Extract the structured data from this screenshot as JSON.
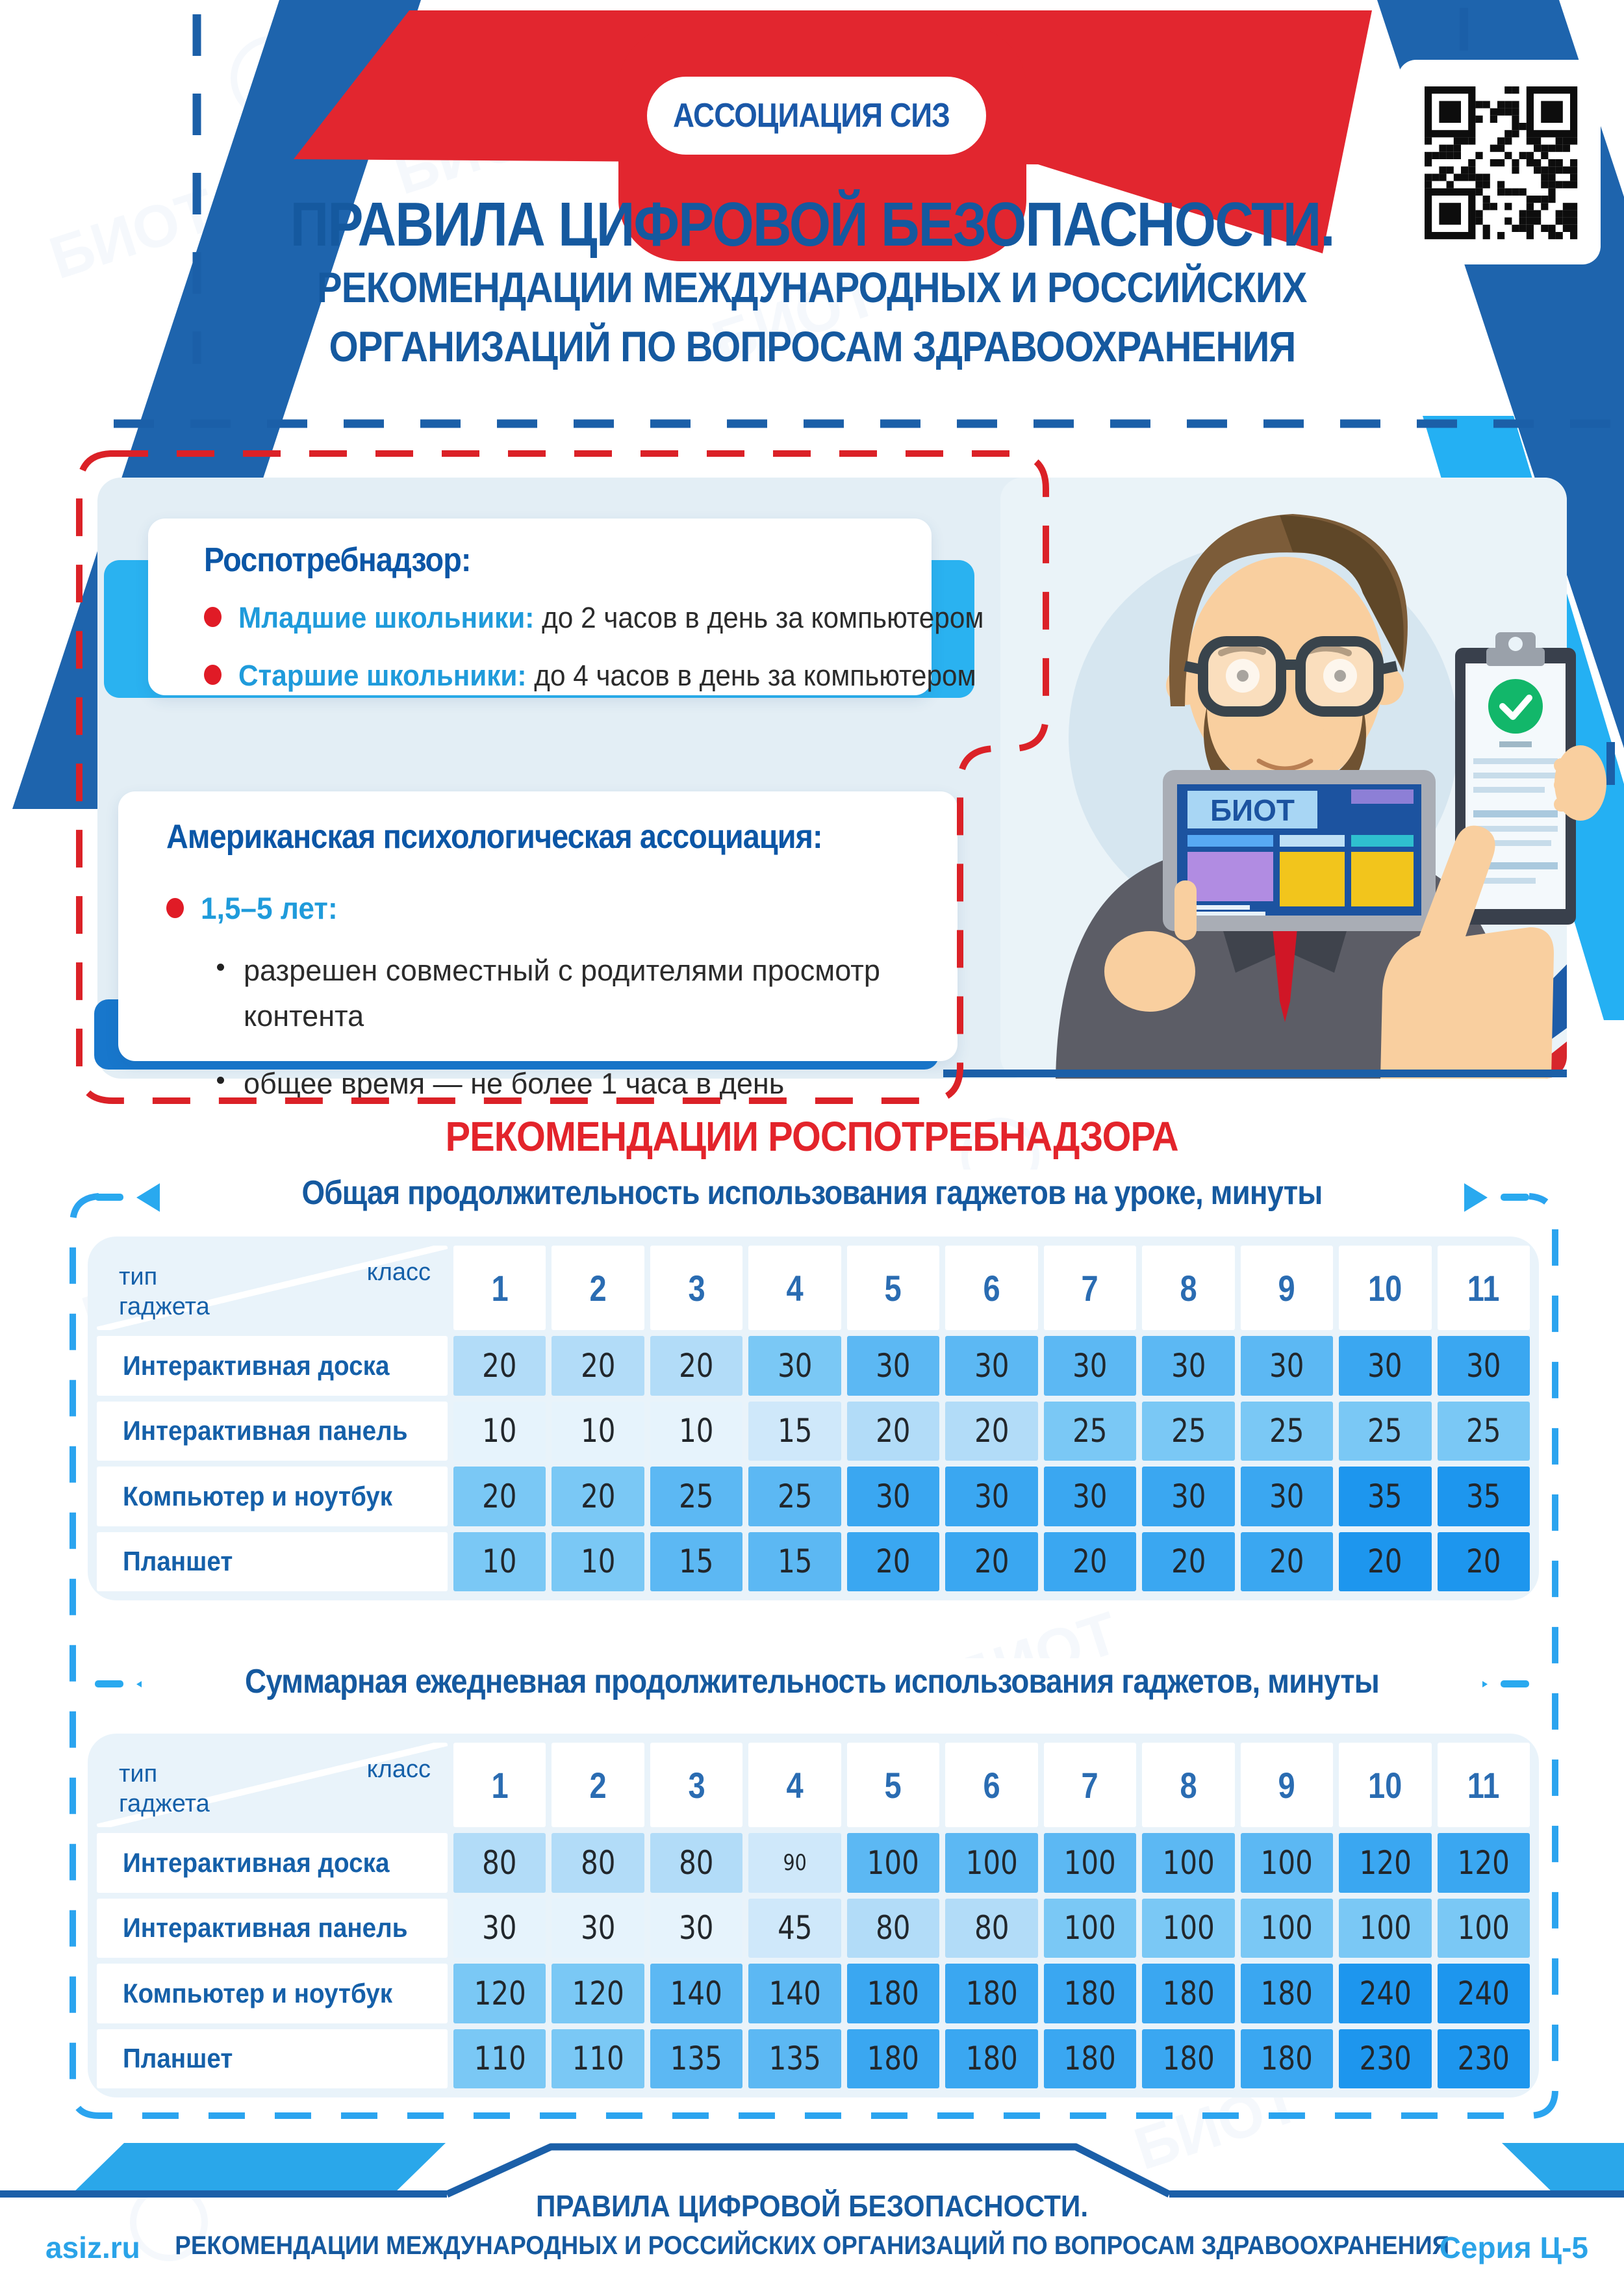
{
  "logo": {
    "text": "АССОЦИАЦИЯ СИЗ",
    "icon_label": "ИЗ"
  },
  "title": {
    "line1": "ПРАВИЛА ЦИФРОВОЙ БЕЗОПАСНОСТИ.",
    "line2": "РЕКОМЕНДАЦИИ МЕЖДУНАРОДНЫХ И РОССИЙСКИХ",
    "line3": "ОРГАНИЗАЦИЙ ПО ВОПРОСАМ ЗДРАВООХРАНЕНИЯ"
  },
  "cards": [
    {
      "heading": "Роспотребнадзор:",
      "bullets": [
        {
          "label": "Младшие школьники:",
          "text": " до 2 часов в день за компьютером"
        },
        {
          "label": "Старшие школьники:",
          "text": " до 4 часов в день за компьютером"
        }
      ]
    },
    {
      "heading": "Американская психологическая ассоциация:",
      "age_label": "1,5–5 лет:",
      "sub_bullets": [
        "разрешен  совместный с родителями просмотр контента",
        "общее время — не более 1 часа в день"
      ]
    }
  ],
  "illustration": {
    "tablet_label": "БИОТ"
  },
  "section_heading": "РЕКОМЕНДАЦИИ РОСПОТРЕБНАДЗОРА",
  "tables": [
    {
      "title": "Общая продолжительность использования гаджетов на уроке, минуты",
      "corner": {
        "left": "тип гаджета",
        "right": "класс"
      },
      "columns": [
        "1",
        "2",
        "3",
        "4",
        "5",
        "6",
        "7",
        "8",
        "9",
        "10",
        "11"
      ],
      "rows": [
        {
          "label": "Интерактивная доска",
          "values": [
            20,
            20,
            20,
            30,
            30,
            30,
            30,
            30,
            30,
            30,
            30
          ],
          "shades": [
            2,
            2,
            2,
            4,
            5,
            5,
            5,
            5,
            5,
            6,
            6
          ]
        },
        {
          "label": "Интерактивная панель",
          "values": [
            10,
            10,
            10,
            15,
            20,
            20,
            25,
            25,
            25,
            25,
            25
          ],
          "shades": [
            0,
            0,
            0,
            1,
            2,
            2,
            4,
            4,
            4,
            4,
            4
          ]
        },
        {
          "label": "Компьютер и ноутбук",
          "values": [
            20,
            20,
            25,
            25,
            30,
            30,
            30,
            30,
            30,
            35,
            35
          ],
          "shades": [
            4,
            4,
            5,
            5,
            6,
            6,
            6,
            6,
            6,
            7,
            7
          ]
        },
        {
          "label": "Планшет",
          "values": [
            10,
            10,
            15,
            15,
            20,
            20,
            20,
            20,
            20,
            20,
            20
          ],
          "shades": [
            4,
            4,
            5,
            5,
            6,
            6,
            6,
            6,
            6,
            7,
            7
          ]
        }
      ],
      "small_cells": []
    },
    {
      "title": "Суммарная ежедневная продолжительность использования гаджетов, минуты",
      "corner": {
        "left": "тип гаджета",
        "right": "класс"
      },
      "columns": [
        "1",
        "2",
        "3",
        "4",
        "5",
        "6",
        "7",
        "8",
        "9",
        "10",
        "11"
      ],
      "rows": [
        {
          "label": "Интерактивная доска",
          "values": [
            80,
            80,
            80,
            90,
            100,
            100,
            100,
            100,
            100,
            120,
            120
          ],
          "shades": [
            2,
            2,
            2,
            1,
            5,
            5,
            5,
            5,
            5,
            6,
            6
          ]
        },
        {
          "label": "Интерактивная панель",
          "values": [
            30,
            30,
            30,
            45,
            80,
            80,
            100,
            100,
            100,
            100,
            100
          ],
          "shades": [
            0,
            0,
            0,
            1,
            2,
            2,
            4,
            4,
            4,
            4,
            4
          ]
        },
        {
          "label": "Компьютер и ноутбук",
          "values": [
            120,
            120,
            140,
            140,
            180,
            180,
            180,
            180,
            180,
            240,
            240
          ],
          "shades": [
            4,
            4,
            5,
            5,
            6,
            6,
            6,
            6,
            6,
            7,
            7
          ]
        },
        {
          "label": "Планшет",
          "values": [
            110,
            110,
            135,
            135,
            180,
            180,
            180,
            180,
            180,
            230,
            230
          ],
          "shades": [
            4,
            4,
            5,
            5,
            6,
            6,
            6,
            6,
            6,
            7,
            7
          ]
        }
      ],
      "small_cells": [
        [
          0,
          3
        ]
      ]
    }
  ],
  "footer": {
    "site": "asiz.ru",
    "line1": "ПРАВИЛА ЦИФРОВОЙ БЕЗОПАСНОСТИ.",
    "line2": "РЕКОМЕНДАЦИИ МЕЖДУНАРОДНЫХ И РОССИЙСКИХ ОРГАНИЗАЦИЙ ПО ВОПРОСАМ ЗДРАВООХРАНЕНИЯ",
    "series": "Серия Ц-5"
  },
  "palette": {
    "cell_shades": [
      "#e6f3fc",
      "#cfe8fa",
      "#b2dcf8",
      "#8ed0f6",
      "#7ac8f5",
      "#5cb8f3",
      "#3aa7f1",
      "#1d96ee"
    ],
    "accent_red": "#e2262f",
    "accent_navy": "#1b5fa8",
    "accent_cyan": "#29a9ef",
    "value_text": "#22272c",
    "header_number": "#2a6cb2",
    "row_label": "#1560a9"
  }
}
